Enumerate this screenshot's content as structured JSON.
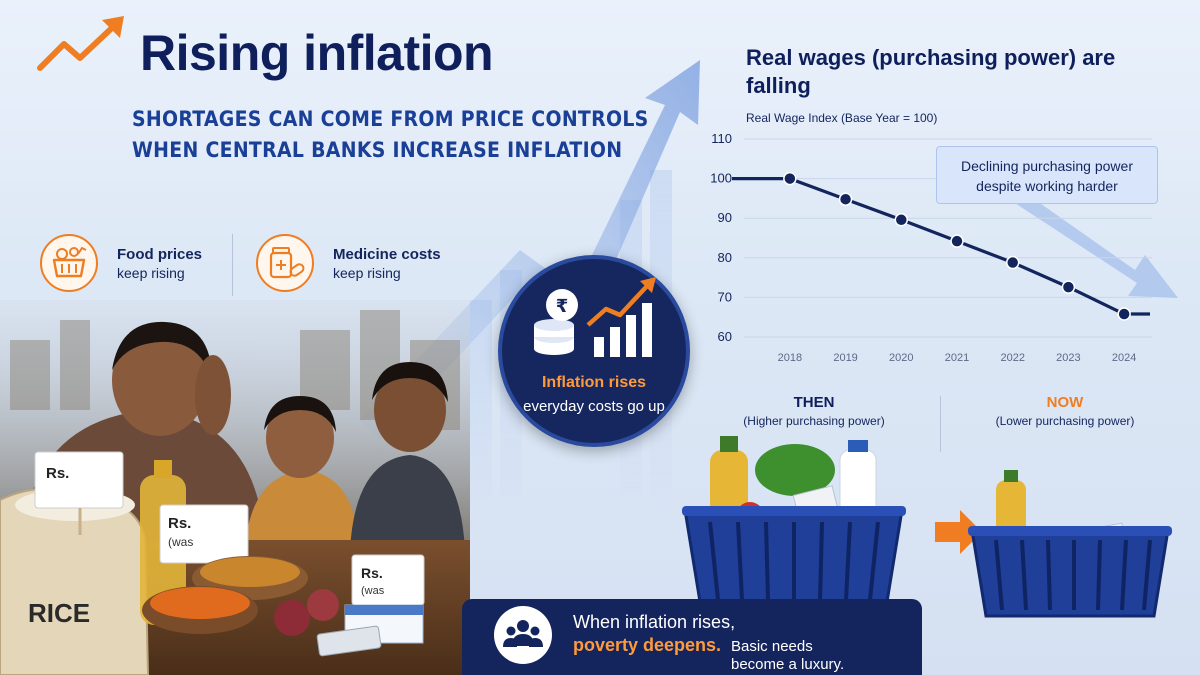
{
  "header": {
    "title": "Rising inflation",
    "subtitle_line1": "SHORTAGES CAN COME FROM PRICE CONTROLS",
    "subtitle_line2": "WHEN CENTRAL BANKS INCREASE INFLATION"
  },
  "features": [
    {
      "title": "Food prices",
      "sub": "keep rising",
      "icon": "basket-icon"
    },
    {
      "title": "Medicine costs",
      "sub": "keep rising",
      "icon": "medicine-icon"
    }
  ],
  "scene": {
    "sack_label": "RICE",
    "tag1": "Rs.",
    "tag1_sub": "(was",
    "tag2": "Rs.",
    "tag2_sub": "(was"
  },
  "inflation_badge": {
    "title": "Inflation rises",
    "sub": "everyday costs go up",
    "icon": "rupee-coins-icon"
  },
  "chart_data": {
    "type": "line",
    "title": "Real wages (purchasing power) are falling",
    "ylabel": "Real Wage Index (Base Year = 100)",
    "x": [
      "2018",
      "2019",
      "2020",
      "2021",
      "2022",
      "2023",
      "2024"
    ],
    "series": [
      {
        "values": [
          100,
          94.8,
          89.6,
          84.2,
          78.8,
          72.6,
          65.8
        ]
      }
    ],
    "yticks": [
      60,
      70,
      80,
      90,
      100,
      110
    ],
    "ylim": [
      60,
      110
    ],
    "grid": true,
    "annotation": "Declining purchasing power despite working harder",
    "color": "#13255c"
  },
  "comparison": {
    "then_label": "THEN",
    "then_sub": "(Higher purchasing power)",
    "now_label": "NOW",
    "now_sub": "(Lower purchasing power)"
  },
  "poverty": {
    "line1": "When inflation rises,",
    "line2": "poverty deepens.",
    "line2b": "Basic needs",
    "line3": "become a luxury.",
    "icon": "people-icon"
  },
  "colors": {
    "accent": "#ef7d22",
    "navy": "#14245c",
    "blue": "#1a3f96"
  }
}
